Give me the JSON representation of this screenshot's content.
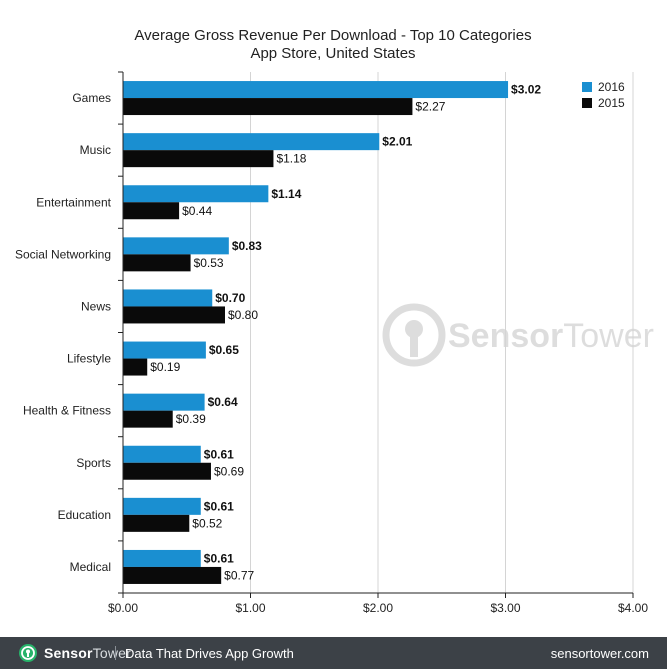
{
  "chart_data": {
    "type": "bar",
    "orientation": "horizontal",
    "title": "Average Gross Revenue Per Download - Top 10 Categories",
    "subtitle": "App Store, United States",
    "categories": [
      "Games",
      "Music",
      "Entertainment",
      "Social Networking",
      "News",
      "Lifestyle",
      "Health & Fitness",
      "Sports",
      "Education",
      "Medical"
    ],
    "series": [
      {
        "name": "2016",
        "color": "#1a8fd1",
        "values": [
          3.02,
          2.01,
          1.14,
          0.83,
          0.7,
          0.65,
          0.64,
          0.61,
          0.61,
          0.61
        ],
        "labels": [
          "$3.02",
          "$2.01",
          "$1.14",
          "$0.83",
          "$0.70",
          "$0.65",
          "$0.64",
          "$0.61",
          "$0.61",
          "$0.61"
        ]
      },
      {
        "name": "2015",
        "color": "#0a0a0a",
        "values": [
          2.27,
          1.18,
          0.44,
          0.53,
          0.8,
          0.19,
          0.39,
          0.69,
          0.52,
          0.77
        ],
        "labels": [
          "$2.27",
          "$1.18",
          "$0.44",
          "$0.53",
          "$0.80",
          "$0.19",
          "$0.39",
          "$0.69",
          "$0.52",
          "$0.77"
        ]
      }
    ],
    "xlim": [
      0,
      4
    ],
    "xticks": [
      0,
      1,
      2,
      3,
      4
    ],
    "xtick_labels": [
      "$0.00",
      "$1.00",
      "$2.00",
      "$3.00",
      "$4.00"
    ],
    "grid": true,
    "legend": "top-right",
    "xlabel": "",
    "ylabel": ""
  },
  "watermark": {
    "text_bold": "Sensor",
    "text_light": "Tower"
  },
  "footer": {
    "brand_bold": "Sensor",
    "brand_light": "Tower",
    "tagline": "Data That Drives App Growth",
    "site": "sensortower.com",
    "background": "#3c4147"
  }
}
